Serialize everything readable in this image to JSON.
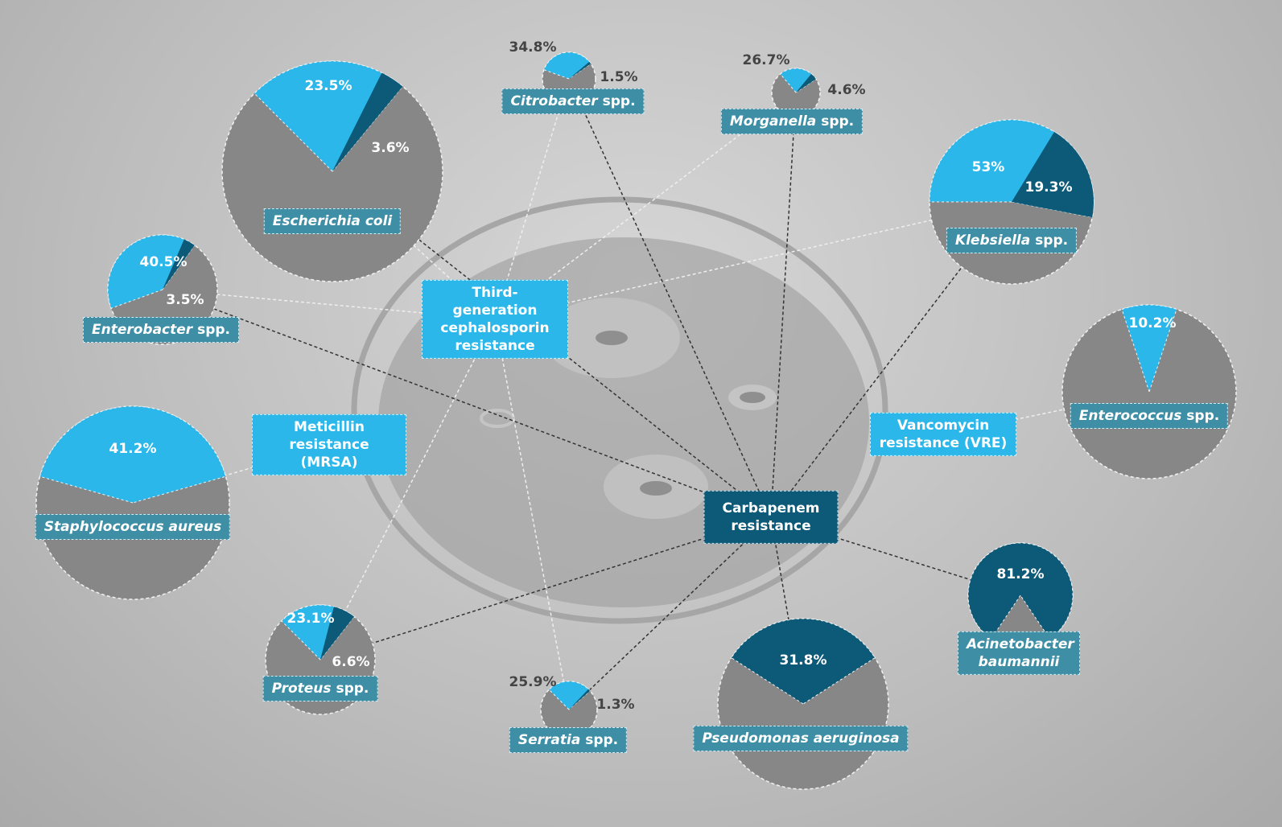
{
  "chart_data": [
    {
      "type": "pie",
      "title": "Escherichia coli",
      "values": [
        23.5,
        3.6
      ],
      "value_labels": [
        "23.5%",
        "3.6%"
      ],
      "colors": [
        "#2bb7ea",
        "#0d5a78"
      ]
    },
    {
      "type": "pie",
      "title": "Enterobacter",
      "suffix": "spp.",
      "values": [
        40.5,
        3.5
      ],
      "value_labels": [
        "40.5%",
        "3.5%"
      ],
      "colors": [
        "#2bb7ea",
        "#0d5a78"
      ]
    },
    {
      "type": "pie",
      "title": "Citrobacter",
      "suffix": "spp.",
      "values": [
        34.8,
        1.5
      ],
      "value_labels": [
        "34.8%",
        "1.5%"
      ],
      "colors": [
        "#2bb7ea",
        "#0d5a78"
      ]
    },
    {
      "type": "pie",
      "title": "Morganella",
      "suffix": "spp.",
      "values": [
        26.7,
        4.6
      ],
      "value_labels": [
        "26.7%",
        "4.6%"
      ],
      "colors": [
        "#2bb7ea",
        "#0d5a78"
      ]
    },
    {
      "type": "pie",
      "title": "Klebsiella",
      "suffix": "spp.",
      "values": [
        53,
        19.3
      ],
      "value_labels": [
        "53%",
        "19.3%"
      ],
      "colors": [
        "#2bb7ea",
        "#0d5a78"
      ]
    },
    {
      "type": "pie",
      "title": "Enterococcus",
      "suffix": "spp.",
      "values": [
        10.2
      ],
      "value_labels": [
        "10.2%"
      ],
      "colors": [
        "#2bb7ea"
      ]
    },
    {
      "type": "pie",
      "title": "Staphylococcus aureus",
      "values": [
        41.2
      ],
      "value_labels": [
        "41.2%"
      ],
      "colors": [
        "#2bb7ea"
      ]
    },
    {
      "type": "pie",
      "title": "Proteus",
      "suffix": "spp.",
      "values": [
        23.1,
        6.6
      ],
      "value_labels": [
        "23.1%",
        "6.6%"
      ],
      "colors": [
        "#2bb7ea",
        "#0d5a78"
      ]
    },
    {
      "type": "pie",
      "title": "Serratia",
      "suffix": "spp.",
      "values": [
        25.9,
        1.3
      ],
      "value_labels": [
        "25.9%",
        "1.3%"
      ],
      "colors": [
        "#2bb7ea",
        "#0d5a78"
      ]
    },
    {
      "type": "pie",
      "title": "Pseudomonas aeruginosa",
      "values": [
        31.8
      ],
      "value_labels": [
        "31.8%"
      ],
      "colors": [
        "#0d5a78"
      ]
    },
    {
      "type": "pie",
      "title": "Acinetobacter baumannii",
      "values": [
        81.2
      ],
      "value_labels": [
        "81.2%"
      ],
      "colors": [
        "#0d5a78"
      ]
    }
  ],
  "resistance": {
    "third_generation": "Third-generation cephalosporin resistance",
    "meticillin": "Meticillin resistance (MRSA)",
    "vancomycin": "Vancomycin resistance (VRE)",
    "carbapenem": "Carbapenem resistance"
  }
}
